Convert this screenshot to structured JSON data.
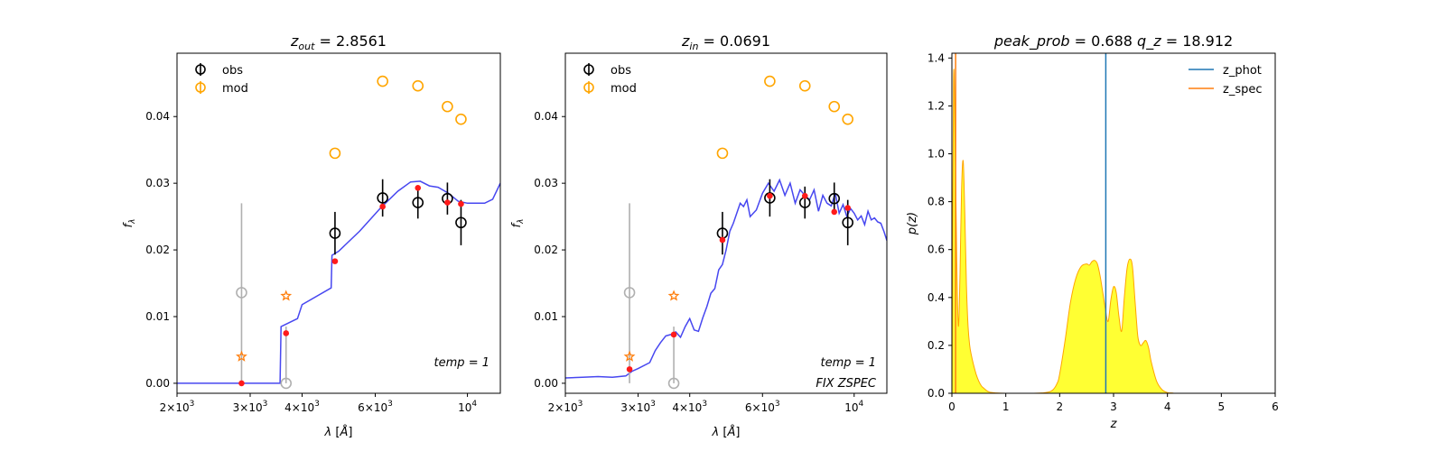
{
  "chart_data": [
    {
      "type": "scatter",
      "title": "z_out = 2.8561",
      "title_parts": {
        "var": "z",
        "sub": "out",
        "value": "= 2.8561"
      },
      "xlabel": "λ [Å]",
      "ylabel": "f_λ",
      "xscale": "log",
      "xlim": [
        2000,
        12000
      ],
      "ylim": [
        -0.0015,
        0.0495
      ],
      "xticks": [
        {
          "value": 2000,
          "mant": "2×10",
          "exp": "3"
        },
        {
          "value": 3000,
          "mant": "3×10",
          "exp": "3"
        },
        {
          "value": 4000,
          "mant": "4×10",
          "exp": "3"
        },
        {
          "value": 6000,
          "mant": "6×10",
          "exp": "3"
        },
        {
          "value": 10000,
          "mant": "10",
          "exp": "4"
        }
      ],
      "yticks": [
        {
          "value": 0.0,
          "label": "0.00"
        },
        {
          "value": 0.01,
          "label": "0.01"
        },
        {
          "value": 0.02,
          "label": "0.02"
        },
        {
          "value": 0.03,
          "label": "0.03"
        },
        {
          "value": 0.04,
          "label": "0.04"
        }
      ],
      "legend": {
        "position": "top-left",
        "entries": [
          {
            "label": "obs",
            "color": "#000000"
          },
          {
            "label": "mod",
            "color": "#ffa500"
          }
        ]
      },
      "obs": {
        "x": [
          4800,
          6250,
          7600,
          8950,
          9650
        ],
        "y": [
          0.0225,
          0.0278,
          0.0271,
          0.0277,
          0.0241
        ],
        "err": [
          0.0032,
          0.0028,
          0.0024,
          0.0024,
          0.0034
        ],
        "color": "#000000"
      },
      "obs_lowsn": {
        "x": [
          2860,
          3660
        ],
        "y": [
          0.0136,
          0.0
        ],
        "err_low": [
          0.0136,
          0.0
        ],
        "err_high": [
          0.0134,
          0.0085
        ],
        "color": "#b0b0b0"
      },
      "mod": {
        "x": [
          4800,
          6250,
          7600,
          8950,
          9650
        ],
        "y": [
          0.0345,
          0.0453,
          0.0446,
          0.0415,
          0.0396
        ],
        "color": "#ffa500"
      },
      "mod_stars": {
        "x": [
          2860,
          3660
        ],
        "y": [
          0.004,
          0.0131
        ],
        "color": "#ff7f0e"
      },
      "model_points": {
        "x": [
          2860,
          3660,
          4800,
          6250,
          7600,
          8950,
          9650
        ],
        "y": [
          0.0,
          0.0075,
          0.0183,
          0.0265,
          0.0293,
          0.0271,
          0.0269
        ],
        "color": "#ff1a1a"
      },
      "sed": {
        "color": "#3333ee",
        "x": [
          2000,
          3540,
          3560,
          3640,
          3900,
          4000,
          4700,
          4720,
          4900,
          5500,
          6200,
          6800,
          7300,
          7700,
          8100,
          8500,
          9000,
          9500,
          10000,
          10500,
          11000,
          11500,
          12000
        ],
        "y": [
          0.0,
          0.0,
          0.0085,
          0.0088,
          0.0097,
          0.0118,
          0.0143,
          0.0192,
          0.0198,
          0.0228,
          0.0264,
          0.0288,
          0.0302,
          0.0303,
          0.0296,
          0.0294,
          0.0285,
          0.0273,
          0.027,
          0.027,
          0.027,
          0.0276,
          0.03
        ]
      },
      "annotations": [
        {
          "var": "temp",
          "value": "= 1"
        }
      ]
    },
    {
      "type": "scatter",
      "title": "z_in = 0.0691",
      "title_parts": {
        "var": "z",
        "sub": "in",
        "value": "= 0.0691"
      },
      "xlabel": "λ [Å]",
      "ylabel": "f_λ",
      "xscale": "log",
      "xlim": [
        2000,
        12000
      ],
      "ylim": [
        -0.0015,
        0.0495
      ],
      "xticks": [
        {
          "value": 2000,
          "mant": "2×10",
          "exp": "3"
        },
        {
          "value": 3000,
          "mant": "3×10",
          "exp": "3"
        },
        {
          "value": 4000,
          "mant": "4×10",
          "exp": "3"
        },
        {
          "value": 6000,
          "mant": "6×10",
          "exp": "3"
        },
        {
          "value": 10000,
          "mant": "10",
          "exp": "4"
        }
      ],
      "yticks": [
        {
          "value": 0.0,
          "label": "0.00"
        },
        {
          "value": 0.01,
          "label": "0.01"
        },
        {
          "value": 0.02,
          "label": "0.02"
        },
        {
          "value": 0.03,
          "label": "0.03"
        },
        {
          "value": 0.04,
          "label": "0.04"
        }
      ],
      "legend": {
        "position": "top-left",
        "entries": [
          {
            "label": "obs",
            "color": "#000000"
          },
          {
            "label": "mod",
            "color": "#ffa500"
          }
        ]
      },
      "obs": {
        "x": [
          4800,
          6250,
          7600,
          8950,
          9650
        ],
        "y": [
          0.0225,
          0.0278,
          0.0271,
          0.0277,
          0.0241
        ],
        "err": [
          0.0032,
          0.0028,
          0.0024,
          0.0024,
          0.0034
        ],
        "color": "#000000"
      },
      "obs_lowsn": {
        "x": [
          2860,
          3660
        ],
        "y": [
          0.0136,
          0.0
        ],
        "err_low": [
          0.0136,
          0.0
        ],
        "err_high": [
          0.0134,
          0.0085
        ],
        "color": "#b0b0b0"
      },
      "mod": {
        "x": [
          4800,
          6250,
          7600,
          8950,
          9650
        ],
        "y": [
          0.0345,
          0.0453,
          0.0446,
          0.0415,
          0.0396
        ],
        "color": "#ffa500"
      },
      "mod_stars": {
        "x": [
          2860,
          3660
        ],
        "y": [
          0.004,
          0.0131
        ],
        "color": "#ff7f0e"
      },
      "model_points": {
        "x": [
          2860,
          3660,
          4800,
          6250,
          7600,
          8950,
          9650
        ],
        "y": [
          0.0021,
          0.0073,
          0.0215,
          0.0281,
          0.0281,
          0.0257,
          0.0263
        ],
        "color": "#ff1a1a"
      },
      "sed": {
        "color": "#3333ee",
        "x": [
          2000,
          2200,
          2400,
          2600,
          2800,
          2900,
          3000,
          3200,
          3300,
          3400,
          3500,
          3600,
          3700,
          3800,
          3900,
          4000,
          4100,
          4200,
          4300,
          4400,
          4500,
          4600,
          4700,
          4800,
          4900,
          5000,
          5100,
          5200,
          5300,
          5400,
          5500,
          5600,
          5800,
          6000,
          6200,
          6400,
          6600,
          6800,
          7000,
          7200,
          7400,
          7600,
          7800,
          8000,
          8200,
          8400,
          8600,
          8800,
          9000,
          9200,
          9400,
          9600,
          9800,
          10000,
          10200,
          10400,
          10600,
          10800,
          11000,
          11200,
          11400,
          11600,
          11800,
          12000
        ],
        "y": [
          0.0008,
          0.0009,
          0.001,
          0.0009,
          0.0011,
          0.0018,
          0.0022,
          0.0031,
          0.0049,
          0.0061,
          0.0071,
          0.0073,
          0.0077,
          0.0069,
          0.0085,
          0.0097,
          0.008,
          0.0078,
          0.0098,
          0.0115,
          0.0135,
          0.0142,
          0.017,
          0.0178,
          0.02,
          0.0228,
          0.024,
          0.0255,
          0.027,
          0.0265,
          0.0275,
          0.025,
          0.026,
          0.0285,
          0.03,
          0.0288,
          0.0305,
          0.0282,
          0.03,
          0.027,
          0.029,
          0.0282,
          0.0275,
          0.029,
          0.0258,
          0.0282,
          0.027,
          0.0266,
          0.0285,
          0.0255,
          0.0268,
          0.025,
          0.0262,
          0.0255,
          0.0245,
          0.0251,
          0.0238,
          0.0258,
          0.0245,
          0.0248,
          0.0242,
          0.024,
          0.0228,
          0.0214
        ]
      },
      "annotations": [
        {
          "var": "temp",
          "value": "= 1"
        },
        {
          "var": "FIX ZSPEC",
          "value": ""
        }
      ]
    },
    {
      "type": "area",
      "title": "peak_prob = 0.688      q_z = 18.912",
      "title_parts": [
        {
          "var": "peak_prob",
          "value": "= 0.688"
        },
        {
          "var": "q_z",
          "value": "= 18.912"
        }
      ],
      "xlabel": "z",
      "ylabel": "p(z)",
      "xlim": [
        0,
        6
      ],
      "ylim": [
        0,
        1.42
      ],
      "xticks": [
        0,
        1,
        2,
        3,
        4,
        5,
        6
      ],
      "yticks": [
        {
          "value": 0.0,
          "label": "0.0"
        },
        {
          "value": 0.2,
          "label": "0.2"
        },
        {
          "value": 0.4,
          "label": "0.4"
        },
        {
          "value": 0.6,
          "label": "0.6"
        },
        {
          "value": 0.8,
          "label": "0.8"
        },
        {
          "value": 1.0,
          "label": "1.0"
        },
        {
          "value": 1.2,
          "label": "1.2"
        },
        {
          "value": 1.4,
          "label": "1.4"
        }
      ],
      "legend": {
        "position": "top-right",
        "entries": [
          {
            "label": "z_phot",
            "color": "#1f77b4"
          },
          {
            "label": "z_spec",
            "color": "#ff7f0e"
          }
        ]
      },
      "z_phot": 2.8561,
      "z_spec": 0.0691,
      "fill_color": "#ffff33",
      "line_color": "#ffa500",
      "pz": {
        "x": [
          0.0,
          0.03,
          0.06,
          0.09,
          0.12,
          0.15,
          0.18,
          0.21,
          0.24,
          0.27,
          0.3,
          0.33,
          0.36,
          0.4,
          0.45,
          0.5,
          0.55,
          0.6,
          0.65,
          0.7,
          0.8,
          1.0,
          1.5,
          1.7,
          1.85,
          1.95,
          2.0,
          2.1,
          2.2,
          2.3,
          2.4,
          2.5,
          2.55,
          2.6,
          2.65,
          2.7,
          2.75,
          2.8,
          2.85,
          2.9,
          2.95,
          3.0,
          3.05,
          3.1,
          3.15,
          3.2,
          3.25,
          3.3,
          3.35,
          3.4,
          3.45,
          3.5,
          3.55,
          3.6,
          3.65,
          3.7,
          3.8,
          3.9,
          4.0,
          4.1,
          4.2,
          5.0
        ],
        "y": [
          0.0,
          1.3,
          1.05,
          0.55,
          0.28,
          0.5,
          0.85,
          0.97,
          0.75,
          0.45,
          0.28,
          0.2,
          0.16,
          0.12,
          0.08,
          0.05,
          0.03,
          0.02,
          0.01,
          0.005,
          0.002,
          0.0,
          0.0,
          0.002,
          0.01,
          0.04,
          0.08,
          0.22,
          0.38,
          0.48,
          0.53,
          0.54,
          0.535,
          0.55,
          0.555,
          0.54,
          0.49,
          0.42,
          0.35,
          0.3,
          0.39,
          0.445,
          0.42,
          0.32,
          0.26,
          0.4,
          0.52,
          0.56,
          0.53,
          0.38,
          0.24,
          0.2,
          0.21,
          0.22,
          0.19,
          0.13,
          0.05,
          0.015,
          0.003,
          0.001,
          0.0,
          0.0
        ]
      }
    }
  ]
}
